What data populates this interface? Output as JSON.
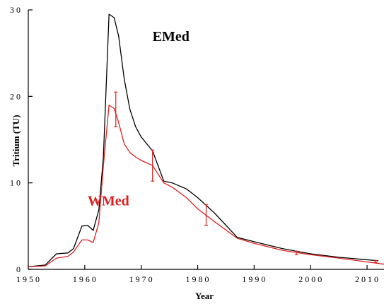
{
  "chart_data": {
    "type": "line",
    "title": "",
    "xlabel": "Year",
    "ylabel": "Tritium (TU)",
    "xlim": [
      1950,
      2013
    ],
    "ylim": [
      0,
      30
    ],
    "x_ticks": [
      1950,
      1960,
      1970,
      1980,
      1990,
      2000,
      2010
    ],
    "x_tick_labels": [
      "1950",
      "1960",
      "1970",
      "1980",
      "1990",
      "2000",
      "2010"
    ],
    "y_ticks": [
      0,
      10,
      20,
      30
    ],
    "y_tick_labels": [
      "0",
      "10",
      "20",
      "30"
    ],
    "grid": false,
    "legend": "none",
    "series": [
      {
        "name": "EMed",
        "color": "#000000",
        "label_position": {
          "x": 1972,
          "y": 26.4
        },
        "x": [
          1950,
          1953,
          1955,
          1957,
          1958,
          1959.5,
          1960.5,
          1961.5,
          1962.5,
          1963.3,
          1964.3,
          1965.2,
          1966,
          1967,
          1968,
          1969,
          1970,
          1972,
          1974,
          1975.5,
          1978,
          1980,
          1983,
          1987,
          1990,
          1995,
          2000,
          2005,
          2012
        ],
        "values": [
          0.3,
          0.5,
          1.8,
          1.9,
          2.4,
          5.0,
          5.1,
          4.5,
          6.9,
          13.0,
          29.5,
          29.1,
          27.0,
          22.0,
          18.5,
          16.5,
          15.3,
          13.7,
          10.2,
          10.0,
          9.3,
          8.3,
          6.5,
          3.7,
          3.2,
          2.4,
          1.8,
          1.4,
          1.0
        ]
      },
      {
        "name": "WMed",
        "color": "#e02020",
        "label_position": {
          "x": 1960.5,
          "y": 7.4
        },
        "x": [
          1950,
          1953,
          1955,
          1957,
          1958,
          1959.5,
          1960.5,
          1961.5,
          1962.5,
          1963.3,
          1964.3,
          1965.2,
          1966,
          1967,
          1968,
          1969,
          1970,
          1972,
          1974,
          1975.5,
          1978,
          1980,
          1983,
          1987,
          1990,
          1995,
          2000,
          2005,
          2013
        ],
        "values": [
          0.3,
          0.4,
          1.3,
          1.5,
          2.0,
          3.4,
          3.4,
          3.1,
          5.4,
          12.0,
          19.0,
          18.6,
          17.0,
          14.5,
          13.5,
          13.0,
          12.6,
          12.0,
          10.0,
          9.5,
          8.3,
          7.0,
          5.5,
          3.6,
          3.0,
          2.2,
          1.7,
          1.3,
          0.6
        ]
      }
    ],
    "error_bars": {
      "series": "WMed",
      "color": "#e02020",
      "points": [
        {
          "x": 1965.5,
          "y": 18.5,
          "low": 16.5,
          "high": 20.5
        },
        {
          "x": 1972,
          "y": 12.0,
          "low": 10.2,
          "high": 13.8
        },
        {
          "x": 1981.5,
          "y": 6.4,
          "low": 5.1,
          "high": 7.5
        },
        {
          "x": 1997.5,
          "y": 1.9,
          "low": 1.7,
          "high": 2.1
        },
        {
          "x": 2011.5,
          "y": 0.9,
          "low": 0.8,
          "high": 1.0
        }
      ]
    }
  }
}
